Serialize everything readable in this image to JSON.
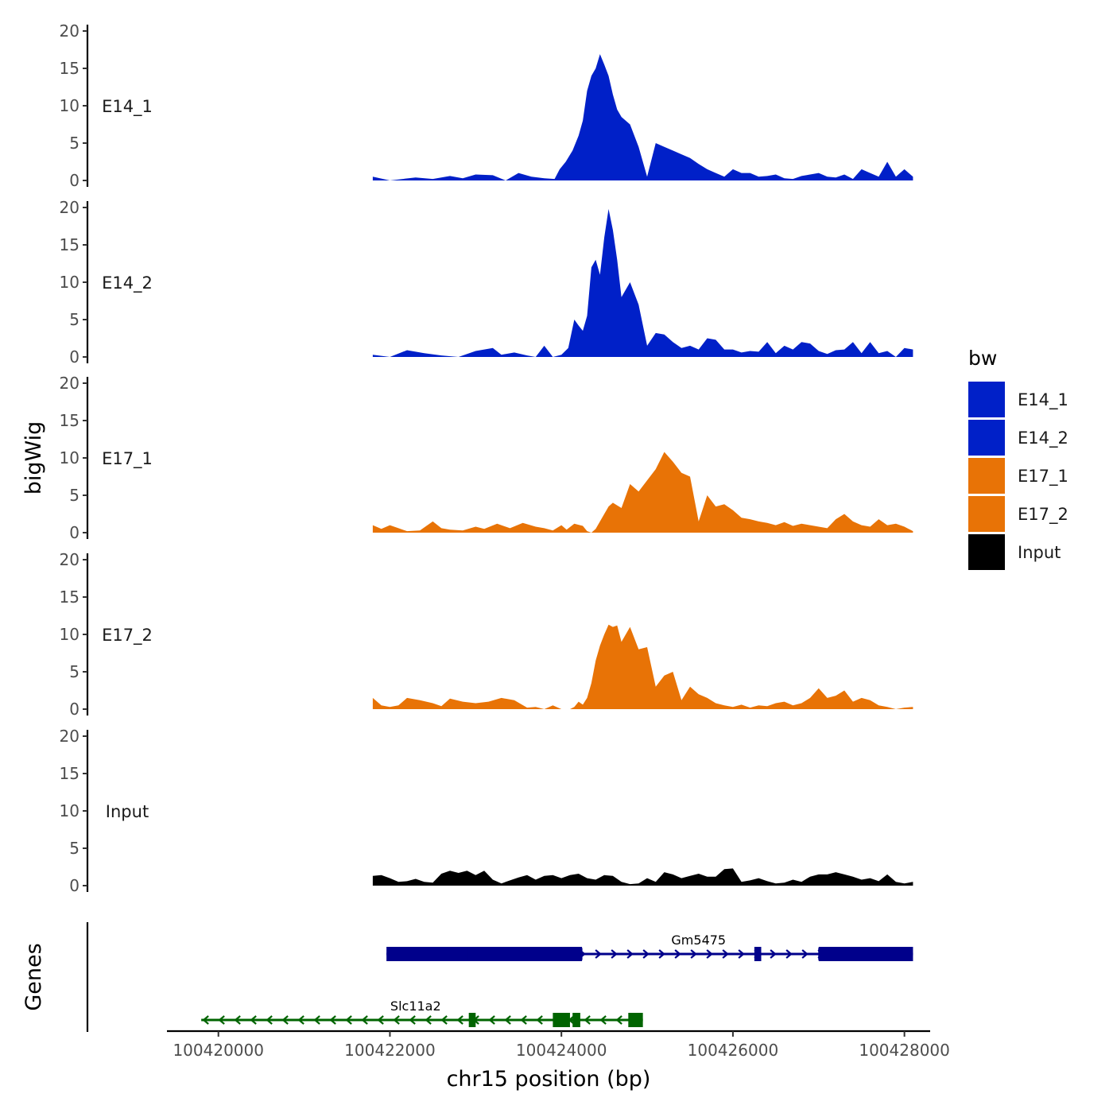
{
  "chart_data": {
    "type": "area",
    "title": "",
    "xlabel": "chr15 position (bp)",
    "ylabel": "bigWig",
    "xlim": [
      100419400,
      100428300
    ],
    "ylim": [
      0,
      20
    ],
    "x_ticks": [
      100420000,
      100422000,
      100424000,
      100426000,
      100428000
    ],
    "x_tick_labels": [
      "100420000",
      "100422000",
      "100424000",
      "100426000",
      "100428000"
    ],
    "y_ticks": [
      0,
      5,
      10,
      15,
      20
    ],
    "y_tick_labels": [
      "0",
      "5",
      "10",
      "15",
      "20"
    ],
    "genes_panel_label": "Genes",
    "legend": {
      "title": "bw",
      "position": "right",
      "items": [
        {
          "label": "E14_1",
          "color": "#0020C8"
        },
        {
          "label": "E14_2",
          "color": "#0020C8"
        },
        {
          "label": "E17_1",
          "color": "#E87306"
        },
        {
          "label": "E17_2",
          "color": "#E87306"
        },
        {
          "label": "Input",
          "color": "#000000"
        }
      ]
    },
    "series": [
      {
        "name": "E14_1",
        "color": "#0020C8",
        "x": [
          100421800,
          100422000,
          100422300,
          100422500,
          100422700,
          100422850,
          100423000,
          100423200,
          100423350,
          100423500,
          100423650,
          100423800,
          100423920,
          100423980,
          100424050,
          100424130,
          100424200,
          100424250,
          100424300,
          100424350,
          100424400,
          100424450,
          100424500,
          100424550,
          100424600,
          100424650,
          100424700,
          100424800,
          100424900,
          100425000,
          100425100,
          100425200,
          100425300,
          100425400,
          100425500,
          100425600,
          100425700,
          100425800,
          100425900,
          100426000,
          100426100,
          100426200,
          100426300,
          100426400,
          100426500,
          100426600,
          100426700,
          100426800,
          100426900,
          100427000,
          100427100,
          100427200,
          100427300,
          100427400,
          100427500,
          100427600,
          100427700,
          100427800,
          100427900,
          100428000,
          100428100
        ],
        "values": [
          0.5,
          0,
          0.4,
          0.2,
          0.6,
          0.3,
          0.8,
          0.7,
          0,
          1.0,
          0.5,
          0.3,
          0.2,
          1.5,
          2.5,
          4.0,
          6.0,
          8.0,
          12.0,
          14.0,
          15.0,
          16.9,
          15.5,
          14.0,
          11.5,
          9.5,
          8.5,
          7.5,
          4.5,
          0.5,
          5.0,
          4.5,
          4.0,
          3.5,
          3.0,
          2.2,
          1.5,
          1.0,
          0.5,
          1.5,
          1.0,
          1.0,
          0.5,
          0.6,
          0.8,
          0.3,
          0.2,
          0.6,
          0.8,
          1.0,
          0.5,
          0.4,
          0.8,
          0.2,
          1.5,
          1.0,
          0.5,
          2.5,
          0.5,
          1.5,
          0.5
        ]
      },
      {
        "name": "E14_2",
        "color": "#0020C8",
        "x": [
          100421800,
          100422000,
          100422200,
          100422400,
          100422600,
          100422800,
          100423000,
          100423200,
          100423300,
          100423450,
          100423600,
          100423700,
          100423800,
          100423900,
          100424000,
          100424080,
          100424150,
          100424200,
          100424250,
          100424300,
          100424350,
          100424400,
          100424450,
          100424500,
          100424550,
          100424600,
          100424650,
          100424700,
          100424800,
          100424900,
          100425000,
          100425100,
          100425200,
          100425300,
          100425400,
          100425500,
          100425600,
          100425700,
          100425800,
          100425900,
          100426000,
          100426100,
          100426200,
          100426300,
          100426400,
          100426500,
          100426600,
          100426700,
          100426800,
          100426900,
          100427000,
          100427100,
          100427200,
          100427300,
          100427400,
          100427500,
          100427600,
          100427700,
          100427800,
          100427900,
          100428000,
          100428100
        ],
        "values": [
          0.3,
          0,
          0.9,
          0.5,
          0.2,
          0,
          0.8,
          1.2,
          0.3,
          0.6,
          0.2,
          0,
          1.5,
          0,
          0.3,
          1.2,
          5.0,
          4.2,
          3.5,
          5.5,
          12.0,
          13.0,
          11.0,
          16.0,
          19.8,
          17.0,
          13.0,
          8.0,
          10.0,
          7.0,
          1.5,
          3.2,
          3.0,
          2.0,
          1.2,
          1.5,
          1.0,
          2.5,
          2.3,
          1.0,
          1.0,
          0.6,
          0.8,
          0.7,
          2.0,
          0.5,
          1.5,
          1.0,
          2.0,
          1.8,
          0.8,
          0.4,
          0.9,
          1.0,
          2.0,
          0.5,
          2.0,
          0.5,
          0.8,
          0,
          1.2,
          1.0
        ]
      },
      {
        "name": "E17_1",
        "color": "#E87306",
        "x": [
          100421800,
          100421900,
          100422000,
          100422100,
          100422200,
          100422350,
          100422500,
          100422600,
          100422700,
          100422850,
          100423000,
          100423100,
          100423250,
          100423400,
          100423550,
          100423700,
          100423800,
          100423900,
          100424000,
          100424060,
          100424150,
          100424250,
          100424300,
          100424350,
          100424400,
          100424450,
          100424500,
          100424550,
          100424600,
          100424700,
          100424800,
          100424900,
          100425000,
          100425100,
          100425200,
          100425300,
          100425400,
          100425500,
          100425600,
          100425700,
          100425800,
          100425900,
          100426000,
          100426100,
          100426200,
          100426300,
          100426400,
          100426500,
          100426600,
          100426700,
          100426800,
          100426900,
          100427000,
          100427100,
          100427200,
          100427300,
          100427400,
          100427500,
          100427600,
          100427700,
          100427800,
          100427900,
          100428000,
          100428100
        ],
        "values": [
          1.0,
          0.5,
          1.0,
          0.6,
          0.2,
          0.3,
          1.5,
          0.6,
          0.4,
          0.3,
          0.8,
          0.5,
          1.2,
          0.6,
          1.3,
          0.8,
          0.6,
          0.3,
          1.0,
          0.4,
          1.2,
          0.9,
          0.2,
          0,
          0.5,
          1.5,
          2.5,
          3.5,
          4.0,
          3.3,
          6.5,
          5.5,
          7.0,
          8.5,
          10.8,
          9.5,
          8.0,
          7.5,
          1.5,
          5.0,
          3.5,
          3.8,
          3.0,
          2.0,
          1.8,
          1.5,
          1.3,
          1.0,
          1.4,
          0.9,
          1.2,
          1.0,
          0.8,
          0.6,
          1.8,
          2.5,
          1.5,
          1.0,
          0.8,
          1.8,
          1.0,
          1.2,
          0.8,
          0.2
        ]
      },
      {
        "name": "E17_2",
        "color": "#E87306",
        "x": [
          100421800,
          100421900,
          100422000,
          100422100,
          100422200,
          100422350,
          100422500,
          100422600,
          100422700,
          100422850,
          100423000,
          100423150,
          100423300,
          100423450,
          100423600,
          100423700,
          100423800,
          100423900,
          100424000,
          100424100,
          100424150,
          100424200,
          100424250,
          100424300,
          100424350,
          100424400,
          100424450,
          100424500,
          100424550,
          100424600,
          100424650,
          100424700,
          100424800,
          100424900,
          100425000,
          100425100,
          100425200,
          100425300,
          100425400,
          100425500,
          100425600,
          100425700,
          100425800,
          100425900,
          100426000,
          100426100,
          100426200,
          100426300,
          100426400,
          100426500,
          100426600,
          100426700,
          100426800,
          100426900,
          100427000,
          100427100,
          100427200,
          100427300,
          100427400,
          100427500,
          100427600,
          100427700,
          100427800,
          100427900,
          100428000,
          100428100
        ],
        "values": [
          1.5,
          0.5,
          0.3,
          0.5,
          1.5,
          1.2,
          0.8,
          0.4,
          1.4,
          1.0,
          0.8,
          1.0,
          1.5,
          1.2,
          0.2,
          0.3,
          0,
          0.5,
          0,
          0,
          0.3,
          1.0,
          0.6,
          1.5,
          3.5,
          6.5,
          8.5,
          10.0,
          11.3,
          11.0,
          11.2,
          9.0,
          11.0,
          8.0,
          8.3,
          3.0,
          4.5,
          5.0,
          1.2,
          3.0,
          2.0,
          1.5,
          0.8,
          0.5,
          0.3,
          0.6,
          0.2,
          0.5,
          0.4,
          0.8,
          1.0,
          0.5,
          0.8,
          1.5,
          2.8,
          1.5,
          1.8,
          2.5,
          1.0,
          1.5,
          1.2,
          0.5,
          0.3,
          0,
          0.2,
          0.3
        ]
      },
      {
        "name": "Input",
        "color": "#000000",
        "x": [
          100421800,
          100421900,
          100422000,
          100422100,
          100422200,
          100422300,
          100422400,
          100422500,
          100422600,
          100422700,
          100422800,
          100422900,
          100423000,
          100423100,
          100423200,
          100423300,
          100423400,
          100423500,
          100423600,
          100423700,
          100423800,
          100423900,
          100424000,
          100424100,
          100424200,
          100424300,
          100424400,
          100424500,
          100424600,
          100424700,
          100424800,
          100424900,
          100425000,
          100425100,
          100425200,
          100425300,
          100425400,
          100425500,
          100425600,
          100425700,
          100425800,
          100425900,
          100426000,
          100426100,
          100426200,
          100426300,
          100426400,
          100426500,
          100426600,
          100426700,
          100426800,
          100426900,
          100427000,
          100427100,
          100427200,
          100427300,
          100427400,
          100427500,
          100427600,
          100427700,
          100427800,
          100427900,
          100428000,
          100428100
        ],
        "values": [
          1.3,
          1.4,
          1.0,
          0.5,
          0.6,
          0.9,
          0.5,
          0.4,
          1.6,
          2.0,
          1.7,
          2.0,
          1.4,
          2.0,
          0.8,
          0.3,
          0.7,
          1.1,
          1.4,
          0.8,
          1.3,
          1.4,
          1.0,
          1.4,
          1.6,
          1.0,
          0.8,
          1.4,
          1.3,
          0.5,
          0.2,
          0.3,
          1.0,
          0.5,
          1.8,
          1.5,
          1.0,
          1.3,
          1.6,
          1.2,
          1.2,
          2.2,
          2.3,
          0.5,
          0.7,
          1.0,
          0.6,
          0.3,
          0.4,
          0.8,
          0.5,
          1.2,
          1.5,
          1.5,
          1.8,
          1.5,
          1.2,
          0.8,
          1.0,
          0.6,
          1.5,
          0.5,
          0.3,
          0.5
        ]
      }
    ],
    "genes": [
      {
        "name": "Gm5475",
        "strand": "+",
        "color": "#00008B",
        "start": 100421960,
        "end": 100428100,
        "exons": [
          [
            100421960,
            100424240
          ],
          [
            100426250,
            100426330
          ],
          [
            100427000,
            100428100
          ]
        ],
        "thick": [
          [
            100422900,
            100424240
          ],
          [
            100427000,
            100427500
          ]
        ]
      },
      {
        "name": "Slc11a2",
        "strand": "-",
        "color": "#006400",
        "start": 100419800,
        "end": 100424950,
        "exons": [
          [
            100422920,
            100423000
          ],
          [
            100423900,
            100424100
          ],
          [
            100424130,
            100424220
          ],
          [
            100424780,
            100424950
          ]
        ],
        "thick": []
      }
    ]
  }
}
